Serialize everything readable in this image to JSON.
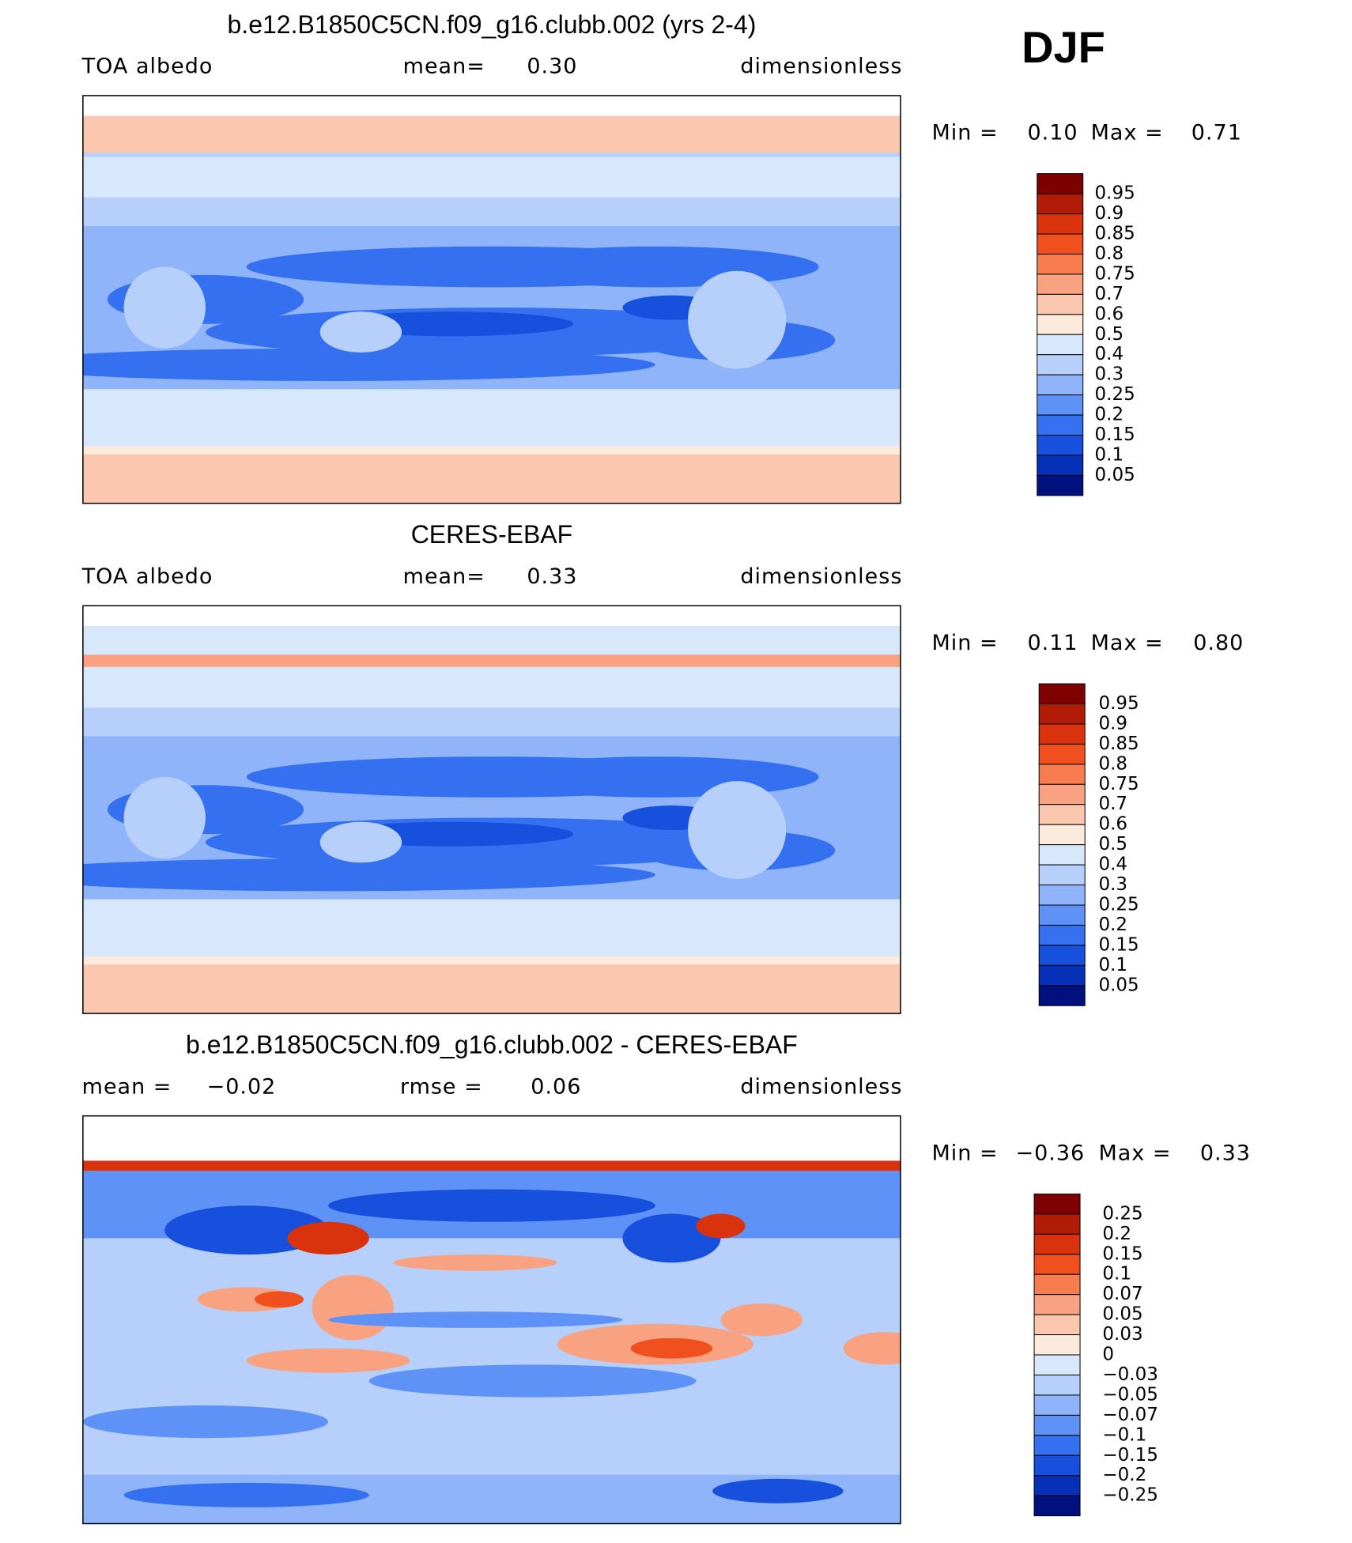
{
  "header": {
    "season": "DJF"
  },
  "colorbar_colors": [
    "#7f0000",
    "#b01c06",
    "#d8330c",
    "#f0501e",
    "#f77c4f",
    "#f9a281",
    "#fbc7ae",
    "#fcebdc",
    "#d7e7fc",
    "#b6d0fb",
    "#8fb4fa",
    "#5f92f6",
    "#3470f0",
    "#1650dc",
    "#0630b8",
    "#00107f"
  ],
  "panels": [
    {
      "title": "b.e12.B1850C5CN.f09_g16.clubb.002 (yrs 2-4)",
      "labels": [
        "TOA albedo",
        "mean=",
        "0.30",
        "dimensionless"
      ],
      "min_label": "Min =",
      "min": "0.10",
      "max_label": "Max =",
      "max": "0.71",
      "colorbar": [
        "0.95",
        "0.9",
        "0.85",
        "0.8",
        "0.75",
        "0.7",
        "0.6",
        "0.5",
        "0.4",
        "0.3",
        "0.25",
        "0.2",
        "0.15",
        "0.1",
        "0.05"
      ]
    },
    {
      "title": "CERES-EBAF",
      "labels": [
        "TOA albedo",
        "mean=",
        "0.33",
        "dimensionless"
      ],
      "min_label": "Min =",
      "min": "0.11",
      "max_label": "Max =",
      "max": "0.80",
      "colorbar": [
        "0.95",
        "0.9",
        "0.85",
        "0.8",
        "0.75",
        "0.7",
        "0.6",
        "0.5",
        "0.4",
        "0.3",
        "0.25",
        "0.2",
        "0.15",
        "0.1",
        "0.05"
      ]
    },
    {
      "title": "b.e12.B1850C5CN.f09_g16.clubb.002 - CERES-EBAF",
      "labels": [
        "mean =",
        "−0.02",
        "rmse =",
        "0.06",
        "dimensionless"
      ],
      "min_label": "Min =",
      "min": "−0.36",
      "max_label": "Max =",
      "max": "0.33",
      "colorbar": [
        "0.25",
        "0.2",
        "0.15",
        "0.1",
        "0.07",
        "0.05",
        "0.03",
        "0",
        "−0.03",
        "−0.05",
        "−0.07",
        "−0.1",
        "−0.15",
        "−0.2",
        "−0.25"
      ]
    }
  ]
}
